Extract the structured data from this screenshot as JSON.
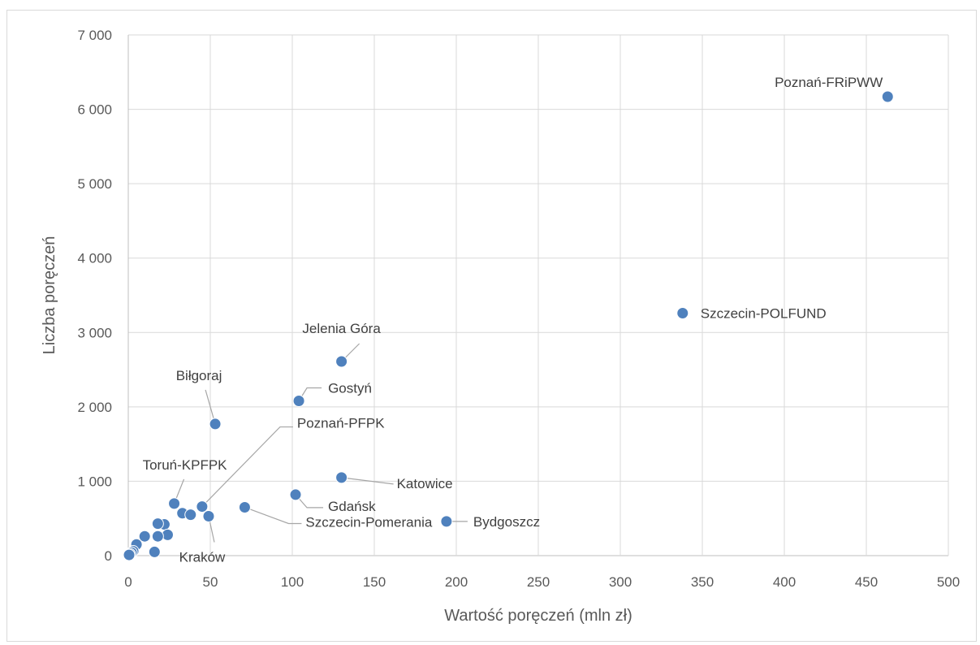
{
  "chart_data": {
    "type": "scatter",
    "title": "",
    "xlabel": "Wartość poręczeń (mln zł)",
    "ylabel": "Liczba poręczeń",
    "xlim": [
      0,
      500
    ],
    "ylim": [
      0,
      7000
    ],
    "xticks": [
      0,
      50,
      100,
      150,
      200,
      250,
      300,
      350,
      400,
      450,
      500
    ],
    "yticks": [
      0,
      1000,
      2000,
      3000,
      4000,
      5000,
      6000,
      7000
    ],
    "xtick_labels": [
      "0",
      "50",
      "100",
      "150",
      "200",
      "250",
      "300",
      "350",
      "400",
      "450",
      "500"
    ],
    "ytick_labels": [
      "0",
      "1 000",
      "2 000",
      "3 000",
      "4 000",
      "5 000",
      "6 000",
      "7 000"
    ],
    "grid": true,
    "legend": "none",
    "marker_color": "#4f81bd",
    "points": [
      {
        "x": 463,
        "y": 6170,
        "label": "Poznań-FRiPWW"
      },
      {
        "x": 338,
        "y": 3260,
        "label": "Szczecin-POLFUND"
      },
      {
        "x": 130,
        "y": 2610,
        "label": "Jelenia Góra"
      },
      {
        "x": 104,
        "y": 2080,
        "label": "Gostyń"
      },
      {
        "x": 53,
        "y": 1770,
        "label": "Biłgoraj"
      },
      {
        "x": 130,
        "y": 1050,
        "label": "Katowice"
      },
      {
        "x": 102,
        "y": 820,
        "label": "Gdańsk"
      },
      {
        "x": 194,
        "y": 460,
        "label": "Bydgoszcz"
      },
      {
        "x": 71,
        "y": 650,
        "label": "Szczecin-Pomerania"
      },
      {
        "x": 45,
        "y": 660,
        "label": "Poznań-PFPK"
      },
      {
        "x": 28,
        "y": 700,
        "label": "Toruń-KPFPK"
      },
      {
        "x": 49,
        "y": 530,
        "label": "Kraków"
      },
      {
        "x": 33,
        "y": 570
      },
      {
        "x": 38,
        "y": 550
      },
      {
        "x": 22,
        "y": 420
      },
      {
        "x": 18,
        "y": 430
      },
      {
        "x": 24,
        "y": 280
      },
      {
        "x": 18,
        "y": 260
      },
      {
        "x": 10,
        "y": 260
      },
      {
        "x": 16,
        "y": 50
      },
      {
        "x": 5,
        "y": 150
      },
      {
        "x": 3,
        "y": 60
      },
      {
        "x": 2,
        "y": 40
      },
      {
        "x": 1,
        "y": 20
      },
      {
        "x": 0.5,
        "y": 10
      }
    ]
  }
}
